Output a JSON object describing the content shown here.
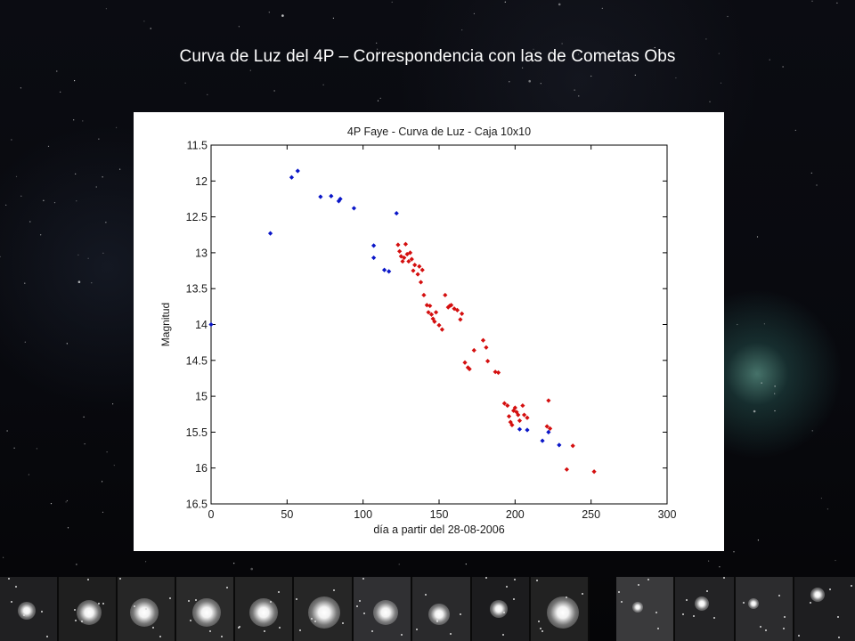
{
  "slide": {
    "title": "Curva de Luz del 4P – Correspondencia con las de Cometas Obs"
  },
  "chart_data": {
    "type": "scatter",
    "title": "4P Faye - Curva de Luz - Caja 10x10",
    "xlabel": "día a partir del 28-08-2006",
    "ylabel": "Magnitud",
    "xlim": [
      0,
      300
    ],
    "ylim": [
      11.5,
      16.5
    ],
    "y_inverted": true,
    "x_ticks": [
      "0",
      "50",
      "100",
      "150",
      "200",
      "250",
      "300"
    ],
    "y_ticks": [
      "11.5",
      "12",
      "12.5",
      "13",
      "13.5",
      "14",
      "14.5",
      "15",
      "15.5",
      "16",
      "16.5"
    ],
    "grid": false,
    "colors": {
      "blue": "#0a16c8",
      "red": "#d40f0f"
    },
    "series": [
      {
        "color": "#0a16c8",
        "points": [
          [
            0,
            14.0
          ],
          [
            39,
            12.73
          ],
          [
            53,
            11.95
          ],
          [
            57,
            11.86
          ],
          [
            72,
            12.22
          ],
          [
            79,
            12.21
          ],
          [
            84,
            12.28
          ],
          [
            85,
            12.25
          ],
          [
            94,
            12.38
          ],
          [
            122,
            12.45
          ],
          [
            107,
            12.9
          ],
          [
            107,
            13.07
          ],
          [
            114,
            13.24
          ],
          [
            117,
            13.26
          ],
          [
            203,
            15.46
          ],
          [
            208,
            15.47
          ],
          [
            218,
            15.62
          ],
          [
            222,
            15.5
          ],
          [
            229,
            15.68
          ]
        ]
      },
      {
        "color": "#d40f0f",
        "points": [
          [
            123,
            12.89
          ],
          [
            124,
            12.98
          ],
          [
            125,
            13.05
          ],
          [
            126,
            13.12
          ],
          [
            127,
            13.07
          ],
          [
            128,
            12.88
          ],
          [
            129,
            13.02
          ],
          [
            130,
            13.12
          ],
          [
            131,
            13.0
          ],
          [
            132,
            13.09
          ],
          [
            133,
            13.25
          ],
          [
            134,
            13.17
          ],
          [
            136,
            13.3
          ],
          [
            137,
            13.19
          ],
          [
            138,
            13.41
          ],
          [
            139,
            13.24
          ],
          [
            140,
            13.59
          ],
          [
            142,
            13.73
          ],
          [
            143,
            13.83
          ],
          [
            144,
            13.74
          ],
          [
            145,
            13.86
          ],
          [
            146,
            13.92
          ],
          [
            147,
            13.96
          ],
          [
            148,
            13.83
          ],
          [
            150,
            14.01
          ],
          [
            152,
            14.07
          ],
          [
            154,
            13.59
          ],
          [
            156,
            13.76
          ],
          [
            157,
            13.74
          ],
          [
            158,
            13.73
          ],
          [
            160,
            13.78
          ],
          [
            162,
            13.8
          ],
          [
            164,
            13.93
          ],
          [
            165,
            13.85
          ],
          [
            167,
            14.53
          ],
          [
            169,
            14.6
          ],
          [
            170,
            14.62
          ],
          [
            173,
            14.36
          ],
          [
            179,
            14.22
          ],
          [
            181,
            14.32
          ],
          [
            182,
            14.51
          ],
          [
            187,
            14.66
          ],
          [
            189,
            14.67
          ],
          [
            193,
            15.1
          ],
          [
            195,
            15.13
          ],
          [
            196,
            15.28
          ],
          [
            197,
            15.36
          ],
          [
            198,
            15.4
          ],
          [
            199,
            15.2
          ],
          [
            200,
            15.16
          ],
          [
            201,
            15.22
          ],
          [
            202,
            15.26
          ],
          [
            203,
            15.34
          ],
          [
            205,
            15.13
          ],
          [
            206,
            15.26
          ],
          [
            208,
            15.3
          ],
          [
            221,
            15.42
          ],
          [
            222,
            15.06
          ],
          [
            223,
            15.45
          ],
          [
            234,
            16.02
          ],
          [
            238,
            15.69
          ],
          [
            252,
            16.05
          ]
        ]
      }
    ]
  },
  "filmstrip": {
    "thumbnails": 14
  }
}
